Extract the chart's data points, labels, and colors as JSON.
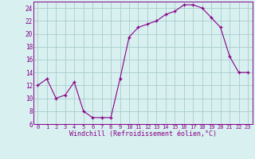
{
  "x": [
    0,
    1,
    2,
    3,
    4,
    5,
    6,
    7,
    8,
    9,
    10,
    11,
    12,
    13,
    14,
    15,
    16,
    17,
    18,
    19,
    20,
    21,
    22,
    23
  ],
  "y": [
    12,
    13,
    10,
    10.5,
    12.5,
    8,
    7,
    7,
    7,
    13,
    19.5,
    21,
    21.5,
    22,
    23,
    23.5,
    24.5,
    24.5,
    24,
    22.5,
    21,
    16.5,
    14,
    14
  ],
  "line_color": "#880088",
  "marker": "+",
  "bg_color": "#d8f0f0",
  "grid_color": "#aacccc",
  "xlabel": "Windchill (Refroidissement éolien,°C)",
  "xlabel_color": "#880088",
  "xlim": [
    -0.5,
    23.5
  ],
  "ylim": [
    6,
    25
  ],
  "yticks": [
    6,
    8,
    10,
    12,
    14,
    16,
    18,
    20,
    22,
    24
  ],
  "xticks": [
    0,
    1,
    2,
    3,
    4,
    5,
    6,
    7,
    8,
    9,
    10,
    11,
    12,
    13,
    14,
    15,
    16,
    17,
    18,
    19,
    20,
    21,
    22,
    23
  ],
  "tick_color": "#880088",
  "spine_color": "#880088"
}
